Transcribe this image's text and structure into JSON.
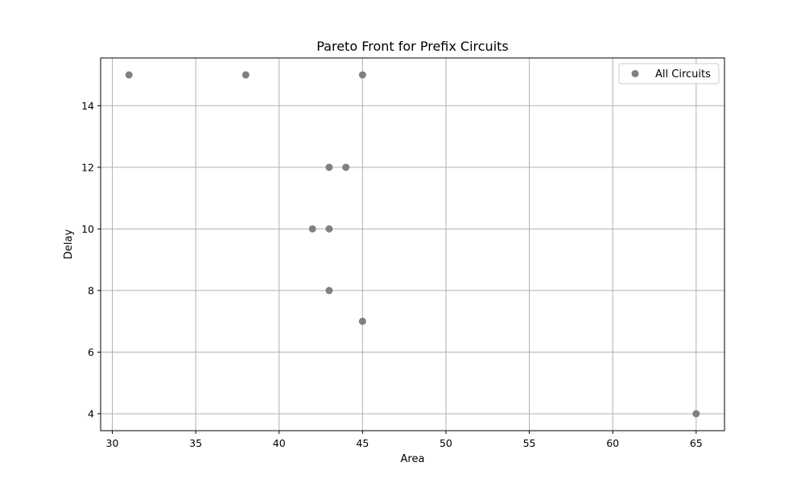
{
  "chart_data": {
    "type": "scatter",
    "title": "Pareto Front for Prefix Circuits",
    "xlabel": "Area",
    "ylabel": "Delay",
    "xlim": [
      29.3,
      66.7
    ],
    "ylim": [
      3.45,
      15.55
    ],
    "xticks": [
      30,
      35,
      40,
      45,
      50,
      55,
      60,
      65
    ],
    "yticks": [
      4,
      6,
      8,
      10,
      12,
      14
    ],
    "grid": true,
    "legend_position": "top-right",
    "series": [
      {
        "name": "All Circuits",
        "color": "#808080",
        "points": [
          {
            "x": 31,
            "y": 15
          },
          {
            "x": 38,
            "y": 15
          },
          {
            "x": 45,
            "y": 15
          },
          {
            "x": 43,
            "y": 12
          },
          {
            "x": 44,
            "y": 12
          },
          {
            "x": 42,
            "y": 10
          },
          {
            "x": 43,
            "y": 10
          },
          {
            "x": 43,
            "y": 8
          },
          {
            "x": 45,
            "y": 7
          },
          {
            "x": 65,
            "y": 4
          }
        ]
      }
    ]
  }
}
